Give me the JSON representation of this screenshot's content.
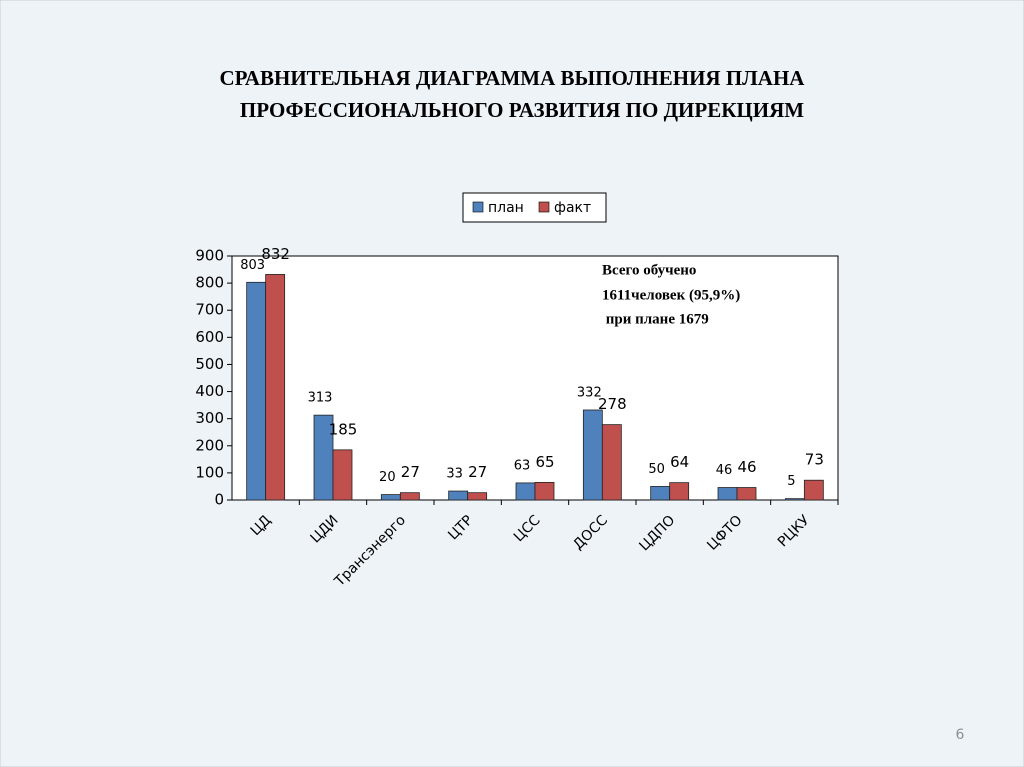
{
  "chart_data": {
    "type": "bar",
    "title": [
      "СРАВНИТЕЛЬНАЯ  ДИАГРАММА ВЫПОЛНЕНИЯ ПЛАНА",
      "ПРОФЕССИОНАЛЬНОГО РАЗВИТИЯ ПО ДИРЕКЦИЯМ"
    ],
    "categories": [
      "ЦД",
      "ЦДИ",
      "Трансэнерго",
      "ЦТР",
      "ЦСС",
      "ДОСС",
      "ЦДПО",
      "ЦФТО",
      "РЦКУ"
    ],
    "series": [
      {
        "name": "план",
        "color": "#4f81bd",
        "values": [
          803,
          313,
          20,
          33,
          63,
          332,
          50,
          46,
          5
        ]
      },
      {
        "name": "факт",
        "color": "#c0504d",
        "values": [
          832,
          185,
          27,
          27,
          65,
          278,
          64,
          46,
          73
        ]
      }
    ],
    "ylim": [
      0,
      900
    ],
    "yticks": [
      0,
      100,
      200,
      300,
      400,
      500,
      600,
      700,
      800,
      900
    ],
    "legend": "top",
    "annotations": [
      "Всего обучено",
      "1611человек (95,9%)",
      " при плане 1679"
    ]
  },
  "page_number": "6"
}
